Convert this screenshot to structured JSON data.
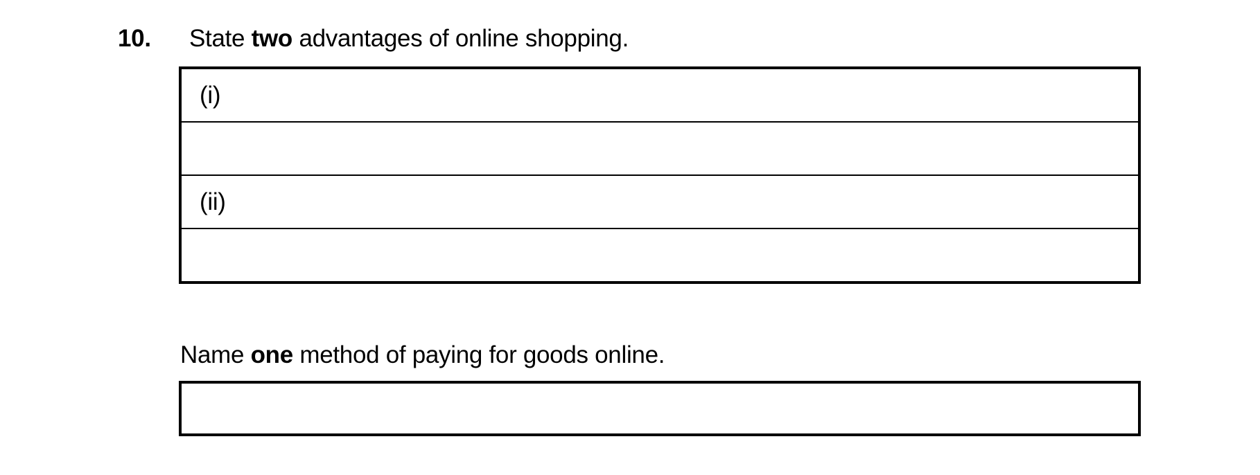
{
  "question": {
    "number": "10.",
    "text_pre": "State ",
    "text_bold": "two",
    "text_post": " advantages of online shopping.",
    "answer_rows": [
      {
        "label": "(i)",
        "value": ""
      },
      {
        "label": "",
        "value": ""
      },
      {
        "label": "(ii)",
        "value": ""
      },
      {
        "label": "",
        "value": ""
      }
    ]
  },
  "sub_question": {
    "text_pre": "Name ",
    "text_bold": "one",
    "text_post": " method of paying for goods online.",
    "answer_value": ""
  },
  "colors": {
    "text": "#000000",
    "border": "#000000",
    "background": "#ffffff"
  }
}
